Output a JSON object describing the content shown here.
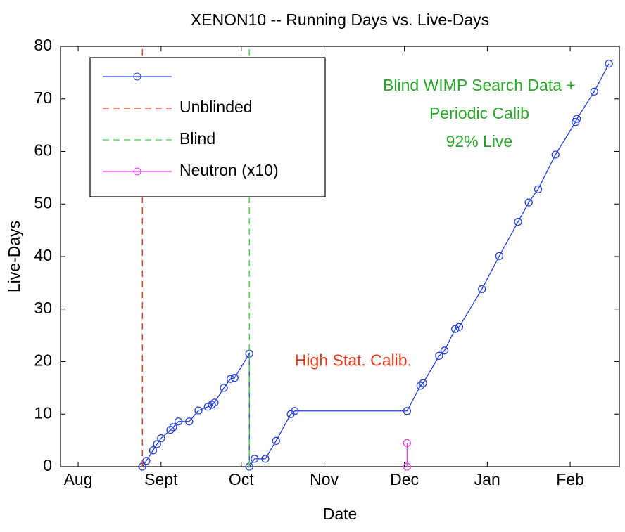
{
  "chart_data": {
    "type": "line",
    "title": "XENON10 -- Running Days vs. Live-Days",
    "x_label": "Date",
    "y_label": "Live-Days",
    "xlim": [
      -6.6,
      202.4
    ],
    "xticks": [
      {
        "value": 0,
        "label": "Aug"
      },
      {
        "value": 31,
        "label": "Sept"
      },
      {
        "value": 61,
        "label": "Oct"
      },
      {
        "value": 92,
        "label": "Nov"
      },
      {
        "value": 122,
        "label": "Dec"
      },
      {
        "value": 153,
        "label": "Jan"
      },
      {
        "value": 184,
        "label": "Feb"
      }
    ],
    "ylim": [
      0,
      80
    ],
    "yticks": [
      0,
      10,
      20,
      30,
      40,
      50,
      60,
      70,
      80
    ],
    "grid": false,
    "legend": "upper left",
    "series": [
      {
        "color": "#2340e0",
        "linestyle": "solid",
        "marker": "o",
        "x": [
          24,
          25.5,
          28,
          29.5,
          31,
          34.5,
          35.5,
          37.5,
          41.5,
          45,
          48.5,
          50,
          51,
          54.5,
          57,
          58.5,
          64,
          64,
          66,
          70,
          74,
          79.5,
          81,
          123,
          128,
          129,
          135,
          137,
          141,
          142.5,
          151,
          157.5,
          164.5,
          168.5,
          172,
          178.5,
          186,
          186.5,
          193,
          198.5
        ],
        "values": [
          0,
          1.1,
          3.1,
          4.3,
          5.4,
          7.0,
          7.5,
          8.6,
          8.6,
          10.7,
          11.4,
          11.8,
          12.2,
          15.0,
          16.7,
          16.9,
          21.5,
          0,
          1.5,
          1.5,
          4.9,
          10.0,
          10.6,
          10.6,
          15.4,
          15.9,
          21.1,
          22.1,
          26.2,
          26.6,
          33.8,
          40.1,
          46.6,
          50.3,
          52.8,
          59.4,
          65.6,
          66.2,
          71.4,
          76.7
        ]
      },
      {
        "name": "Unblinded",
        "color": "#e03a1a",
        "linestyle": "dashed",
        "marker": "none",
        "x": [
          24,
          24
        ],
        "values": [
          0,
          80
        ]
      },
      {
        "name": "Blind",
        "color": "#3ad83a",
        "linestyle": "dashed",
        "marker": "none",
        "x": [
          64,
          64
        ],
        "values": [
          0,
          80
        ]
      },
      {
        "name": "Neutron (x10)",
        "color": "#f03cf0",
        "linestyle": "solid",
        "marker": "o",
        "x": [
          123,
          123
        ],
        "values": [
          0,
          4.5
        ]
      }
    ],
    "annotations": [
      {
        "text": [
          "High Stat. Calib."
        ],
        "color": "#e03a1a",
        "x": 81,
        "y": 20
      },
      {
        "text": [
          "Blind WIMP Search Data +",
          "Periodic Calib",
          "92% Live"
        ],
        "color": "#2aa82a",
        "x": 150,
        "y": 68
      }
    ]
  }
}
